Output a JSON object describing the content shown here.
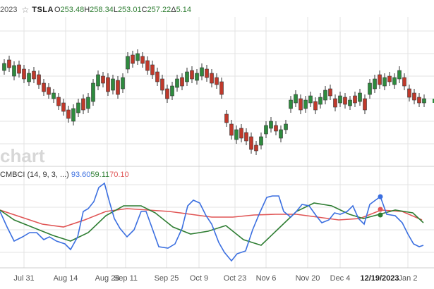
{
  "header": {
    "date_fragment": "2023",
    "symbol": "TSLA",
    "open_key": "O",
    "open": "253.48",
    "high_key": "H",
    "high": "258.34",
    "low_key": "L",
    "low": "253.01",
    "close_key": "C",
    "close": "257.22",
    "change_key": "Δ",
    "change": "5.14",
    "star_icon": "star-icon"
  },
  "watermark": "chart",
  "indicator": {
    "name": "CMBCI (14, 9, 3, ...)",
    "v1": "93.60",
    "v2": "59.11",
    "v3": "70.10",
    "colors": {
      "fast": "#3b6fe0",
      "slow": "#2e7d32",
      "signal": "#e05555"
    }
  },
  "x_axis": {
    "labels": [
      "Jul 31",
      "Aug 14",
      "Aug 28",
      "Sep 11",
      "Sep 25",
      "Oct 9",
      "Oct 23",
      "Nov 6",
      "Nov 20",
      "Dec 4",
      "12/19/2023",
      "Jan 2"
    ],
    "highlight": "12/19/2023"
  },
  "colors": {
    "up": "#2e8b3e",
    "down": "#c0392b",
    "grid": "#e3e3e3"
  }
}
